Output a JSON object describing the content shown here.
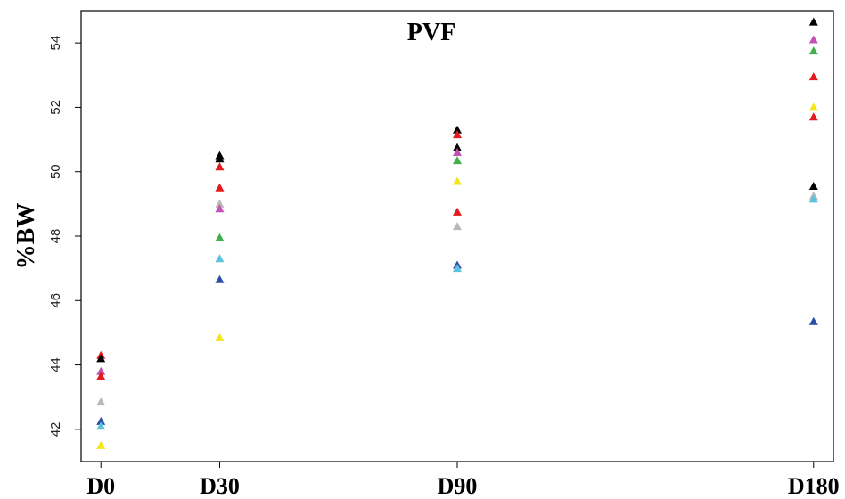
{
  "chart_data": {
    "type": "scatter",
    "title": "PVF",
    "xlabel": "",
    "ylabel": "%BW",
    "x_ticks": [
      "D0",
      "D30",
      "D90",
      "D180"
    ],
    "x_positions": [
      0,
      30,
      90,
      180
    ],
    "xlim": [
      -5,
      185
    ],
    "y_ticks": [
      42,
      44,
      46,
      48,
      50,
      52,
      54
    ],
    "ylim": [
      41.0,
      55.0
    ],
    "marker": "triangle",
    "grid": false,
    "legend": "none",
    "points": [
      {
        "x": 0,
        "y": 44.3,
        "color": "#e41a1c"
      },
      {
        "x": 0,
        "y": 44.2,
        "color": "#000000"
      },
      {
        "x": 0,
        "y": 43.8,
        "color": "#c451b4"
      },
      {
        "x": 0,
        "y": 43.65,
        "color": "#e41a1c"
      },
      {
        "x": 0,
        "y": 42.85,
        "color": "#b8b8b8"
      },
      {
        "x": 0,
        "y": 42.25,
        "color": "#2b4ea8"
      },
      {
        "x": 0,
        "y": 42.1,
        "color": "#5bc4dc"
      },
      {
        "x": 0,
        "y": 41.5,
        "color": "#f5e614"
      },
      {
        "x": 30,
        "y": 50.5,
        "color": "#000000"
      },
      {
        "x": 30,
        "y": 50.4,
        "color": "#000000"
      },
      {
        "x": 30,
        "y": 50.15,
        "color": "#e41a1c"
      },
      {
        "x": 30,
        "y": 49.5,
        "color": "#e41a1c"
      },
      {
        "x": 30,
        "y": 49.0,
        "color": "#b8b8b8"
      },
      {
        "x": 30,
        "y": 48.85,
        "color": "#c451b4"
      },
      {
        "x": 30,
        "y": 47.95,
        "color": "#3fb04a"
      },
      {
        "x": 30,
        "y": 47.3,
        "color": "#5bc4dc"
      },
      {
        "x": 30,
        "y": 46.65,
        "color": "#2b4ea8"
      },
      {
        "x": 30,
        "y": 44.85,
        "color": "#f5e614"
      },
      {
        "x": 90,
        "y": 51.3,
        "color": "#000000"
      },
      {
        "x": 90,
        "y": 51.15,
        "color": "#e41a1c"
      },
      {
        "x": 90,
        "y": 50.75,
        "color": "#000000"
      },
      {
        "x": 90,
        "y": 50.6,
        "color": "#c451b4"
      },
      {
        "x": 90,
        "y": 50.35,
        "color": "#3fb04a"
      },
      {
        "x": 90,
        "y": 49.7,
        "color": "#f5e614"
      },
      {
        "x": 90,
        "y": 48.75,
        "color": "#e41a1c"
      },
      {
        "x": 90,
        "y": 48.3,
        "color": "#b8b8b8"
      },
      {
        "x": 90,
        "y": 47.1,
        "color": "#2b4ea8"
      },
      {
        "x": 90,
        "y": 47.0,
        "color": "#5bc4dc"
      },
      {
        "x": 180,
        "y": 54.65,
        "color": "#000000"
      },
      {
        "x": 180,
        "y": 54.1,
        "color": "#c451b4"
      },
      {
        "x": 180,
        "y": 53.75,
        "color": "#3fb04a"
      },
      {
        "x": 180,
        "y": 52.95,
        "color": "#e41a1c"
      },
      {
        "x": 180,
        "y": 52.0,
        "color": "#f5e614"
      },
      {
        "x": 180,
        "y": 51.7,
        "color": "#e41a1c"
      },
      {
        "x": 180,
        "y": 49.55,
        "color": "#000000"
      },
      {
        "x": 180,
        "y": 49.25,
        "color": "#b8b8b8"
      },
      {
        "x": 180,
        "y": 49.15,
        "color": "#5bc4dc"
      },
      {
        "x": 180,
        "y": 45.35,
        "color": "#2b4ea8"
      }
    ]
  }
}
